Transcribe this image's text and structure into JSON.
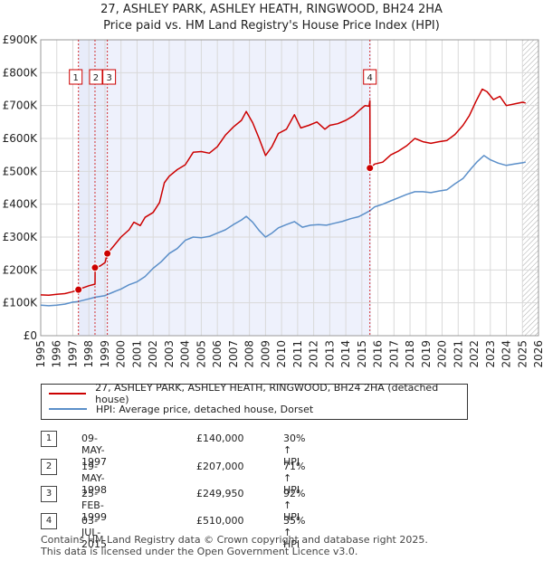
{
  "title": {
    "line1": "27, ASHLEY PARK, ASHLEY HEATH, RINGWOOD, BH24 2HA",
    "line2": "Price paid vs. HM Land Registry's House Price Index (HPI)"
  },
  "chart_data": {
    "type": "line",
    "x_range": [
      1995,
      2026
    ],
    "ylim": [
      0,
      900000
    ],
    "y_ticks": [
      0,
      100000,
      200000,
      300000,
      400000,
      500000,
      600000,
      700000,
      800000,
      900000
    ],
    "y_tick_labels": [
      "£0",
      "£100K",
      "£200K",
      "£300K",
      "£400K",
      "£500K",
      "£600K",
      "£700K",
      "£800K",
      "£900K"
    ],
    "x_ticks": [
      "1995",
      "1996",
      "1997",
      "1998",
      "1999",
      "2000",
      "2001",
      "2002",
      "2003",
      "2004",
      "2005",
      "2006",
      "2007",
      "2008",
      "2009",
      "2010",
      "2011",
      "2012",
      "2013",
      "2014",
      "2015",
      "2016",
      "2017",
      "2018",
      "2019",
      "2020",
      "2021",
      "2022",
      "2023",
      "2024",
      "2025",
      "2026"
    ],
    "grid": true,
    "highlight_spans": [
      [
        1997.35,
        1999.15
      ],
      [
        2015.5,
        2015.55
      ]
    ],
    "future_hatch_from": 2025.0,
    "series": [
      {
        "name": "27, ASHLEY PARK, ASHLEY HEATH, RINGWOOD, BH24 2HA (detached house)",
        "color": "#cc0000",
        "points": [
          [
            1995,
            124000
          ],
          [
            1995.5,
            123000
          ],
          [
            1996,
            126000
          ],
          [
            1996.5,
            128000
          ],
          [
            1997.0,
            134000
          ],
          [
            1997.35,
            140000
          ],
          [
            1997.6,
            145000
          ],
          [
            1998.0,
            152000
          ],
          [
            1998.38,
            157000
          ],
          [
            1998.39,
            207000
          ],
          [
            1998.7,
            212000
          ],
          [
            1999.0,
            222000
          ],
          [
            1999.15,
            249950
          ],
          [
            1999.5,
            270000
          ],
          [
            2000.0,
            300000
          ],
          [
            2000.5,
            322000
          ],
          [
            2000.8,
            345000
          ],
          [
            2001.2,
            335000
          ],
          [
            2001.5,
            360000
          ],
          [
            2002.0,
            375000
          ],
          [
            2002.4,
            405000
          ],
          [
            2002.7,
            465000
          ],
          [
            2003.0,
            485000
          ],
          [
            2003.5,
            505000
          ],
          [
            2004.0,
            520000
          ],
          [
            2004.5,
            558000
          ],
          [
            2005.0,
            560000
          ],
          [
            2005.5,
            555000
          ],
          [
            2006.0,
            575000
          ],
          [
            2006.5,
            610000
          ],
          [
            2007.0,
            635000
          ],
          [
            2007.5,
            655000
          ],
          [
            2007.8,
            682000
          ],
          [
            2008.2,
            648000
          ],
          [
            2008.6,
            600000
          ],
          [
            2009.0,
            548000
          ],
          [
            2009.4,
            575000
          ],
          [
            2009.8,
            615000
          ],
          [
            2010.3,
            628000
          ],
          [
            2010.8,
            672000
          ],
          [
            2011.2,
            632000
          ],
          [
            2011.7,
            640000
          ],
          [
            2012.2,
            650000
          ],
          [
            2012.7,
            628000
          ],
          [
            2013.0,
            640000
          ],
          [
            2013.5,
            645000
          ],
          [
            2014.0,
            655000
          ],
          [
            2014.5,
            670000
          ],
          [
            2014.9,
            688000
          ],
          [
            2015.2,
            700000
          ],
          [
            2015.45,
            698000
          ],
          [
            2015.5,
            715000
          ],
          [
            2015.51,
            510000
          ],
          [
            2015.8,
            522000
          ],
          [
            2016.3,
            528000
          ],
          [
            2016.8,
            550000
          ],
          [
            2017.3,
            562000
          ],
          [
            2017.8,
            578000
          ],
          [
            2018.3,
            600000
          ],
          [
            2018.8,
            590000
          ],
          [
            2019.3,
            585000
          ],
          [
            2019.8,
            590000
          ],
          [
            2020.3,
            594000
          ],
          [
            2020.8,
            612000
          ],
          [
            2021.3,
            640000
          ],
          [
            2021.7,
            670000
          ],
          [
            2022.1,
            712000
          ],
          [
            2022.5,
            750000
          ],
          [
            2022.8,
            742000
          ],
          [
            2023.2,
            718000
          ],
          [
            2023.6,
            728000
          ],
          [
            2024.0,
            700000
          ],
          [
            2024.5,
            705000
          ],
          [
            2025.0,
            710000
          ],
          [
            2025.2,
            708000
          ]
        ]
      },
      {
        "name": "HPI: Average price, detached house, Dorset",
        "color": "#5b8fc9",
        "points": [
          [
            1995,
            93000
          ],
          [
            1995.5,
            91000
          ],
          [
            1996,
            93000
          ],
          [
            1996.5,
            96000
          ],
          [
            1997.0,
            102000
          ],
          [
            1997.35,
            104000
          ],
          [
            1998.0,
            112000
          ],
          [
            1998.39,
            117000
          ],
          [
            1999.0,
            122000
          ],
          [
            1999.15,
            125000
          ],
          [
            1999.5,
            132000
          ],
          [
            2000.0,
            142000
          ],
          [
            2000.5,
            155000
          ],
          [
            2001.0,
            164000
          ],
          [
            2001.5,
            180000
          ],
          [
            2002.0,
            205000
          ],
          [
            2002.5,
            225000
          ],
          [
            2003.0,
            250000
          ],
          [
            2003.5,
            265000
          ],
          [
            2004.0,
            290000
          ],
          [
            2004.5,
            300000
          ],
          [
            2005.0,
            298000
          ],
          [
            2005.5,
            302000
          ],
          [
            2006.0,
            312000
          ],
          [
            2006.5,
            322000
          ],
          [
            2007.0,
            338000
          ],
          [
            2007.5,
            352000
          ],
          [
            2007.8,
            363000
          ],
          [
            2008.2,
            345000
          ],
          [
            2008.6,
            320000
          ],
          [
            2009.0,
            300000
          ],
          [
            2009.4,
            312000
          ],
          [
            2009.8,
            328000
          ],
          [
            2010.3,
            338000
          ],
          [
            2010.8,
            347000
          ],
          [
            2011.3,
            330000
          ],
          [
            2011.8,
            336000
          ],
          [
            2012.3,
            338000
          ],
          [
            2012.8,
            336000
          ],
          [
            2013.3,
            342000
          ],
          [
            2013.8,
            348000
          ],
          [
            2014.3,
            356000
          ],
          [
            2014.8,
            362000
          ],
          [
            2015.2,
            372000
          ],
          [
            2015.5,
            380000
          ],
          [
            2015.8,
            392000
          ],
          [
            2016.3,
            400000
          ],
          [
            2016.8,
            410000
          ],
          [
            2017.3,
            420000
          ],
          [
            2017.8,
            430000
          ],
          [
            2018.3,
            438000
          ],
          [
            2018.8,
            438000
          ],
          [
            2019.3,
            435000
          ],
          [
            2019.8,
            440000
          ],
          [
            2020.3,
            444000
          ],
          [
            2020.8,
            462000
          ],
          [
            2021.3,
            478000
          ],
          [
            2021.8,
            508000
          ],
          [
            2022.2,
            530000
          ],
          [
            2022.6,
            548000
          ],
          [
            2023.0,
            535000
          ],
          [
            2023.5,
            525000
          ],
          [
            2024.0,
            518000
          ],
          [
            2024.5,
            522000
          ],
          [
            2025.0,
            526000
          ],
          [
            2025.2,
            528000
          ]
        ]
      }
    ],
    "sales": [
      {
        "label": "1",
        "date": 1997.35,
        "price": 140000
      },
      {
        "label": "2",
        "date": 1998.38,
        "price": 207000
      },
      {
        "label": "3",
        "date": 1999.15,
        "price": 249950
      },
      {
        "label": "4",
        "date": 2015.5,
        "price": 510000
      }
    ]
  },
  "legend": {
    "property": "27, ASHLEY PARK, ASHLEY HEATH, RINGWOOD, BH24 2HA (detached house)",
    "hpi": "HPI: Average price, detached house, Dorset",
    "property_color": "#cc0000",
    "hpi_color": "#5b8fc9"
  },
  "transactions": [
    {
      "num": "1",
      "date": "09-MAY-1997",
      "price": "£140,000",
      "hpi": "30% ↑ HPI"
    },
    {
      "num": "2",
      "date": "19-MAY-1998",
      "price": "£207,000",
      "hpi": "71% ↑ HPI"
    },
    {
      "num": "3",
      "date": "25-FEB-1999",
      "price": "£249,950",
      "hpi": "92% ↑ HPI"
    },
    {
      "num": "4",
      "date": "03-JUL-2015",
      "price": "£510,000",
      "hpi": "35% ↑ HPI"
    }
  ],
  "footer": {
    "line1": "Contains HM Land Registry data © Crown copyright and database right 2025.",
    "line2": "This data is licensed under the Open Government Licence v3.0."
  }
}
